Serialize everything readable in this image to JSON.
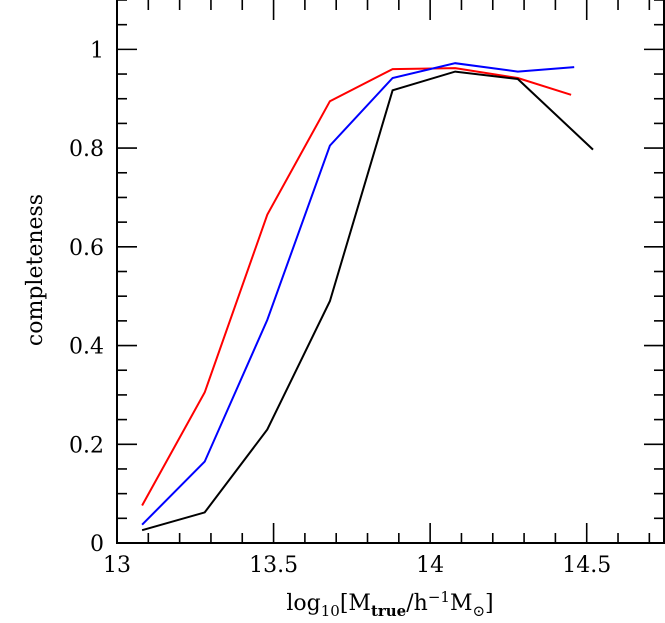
{
  "chart_data": {
    "type": "line",
    "xlabel": "log10[Mtrue/h-1M⊙]",
    "ylabel": "completeness",
    "xlim": [
      13.0,
      14.75
    ],
    "ylim": [
      0.0,
      1.1
    ],
    "x_ticks": [
      "13",
      "13.5",
      "14",
      "14.5"
    ],
    "y_ticks": [
      "0",
      "0.2",
      "0.4",
      "0.6",
      "0.8",
      "1"
    ],
    "series": [
      {
        "color": "#ff0000",
        "x": [
          13.08,
          13.28,
          13.48,
          13.68,
          13.88,
          14.08,
          14.28,
          14.45
        ],
        "y": [
          0.076,
          0.305,
          0.665,
          0.895,
          0.96,
          0.962,
          0.942,
          0.908
        ]
      },
      {
        "color": "#0000ff",
        "x": [
          13.08,
          13.28,
          13.48,
          13.68,
          13.88,
          14.08,
          14.28,
          14.46
        ],
        "y": [
          0.037,
          0.165,
          0.452,
          0.805,
          0.942,
          0.972,
          0.955,
          0.964
        ]
      },
      {
        "color": "#000000",
        "x": [
          13.08,
          13.28,
          13.48,
          13.68,
          13.88,
          14.08,
          14.28,
          14.52
        ],
        "y": [
          0.026,
          0.062,
          0.23,
          0.49,
          0.917,
          0.955,
          0.94,
          0.797
        ]
      }
    ]
  }
}
